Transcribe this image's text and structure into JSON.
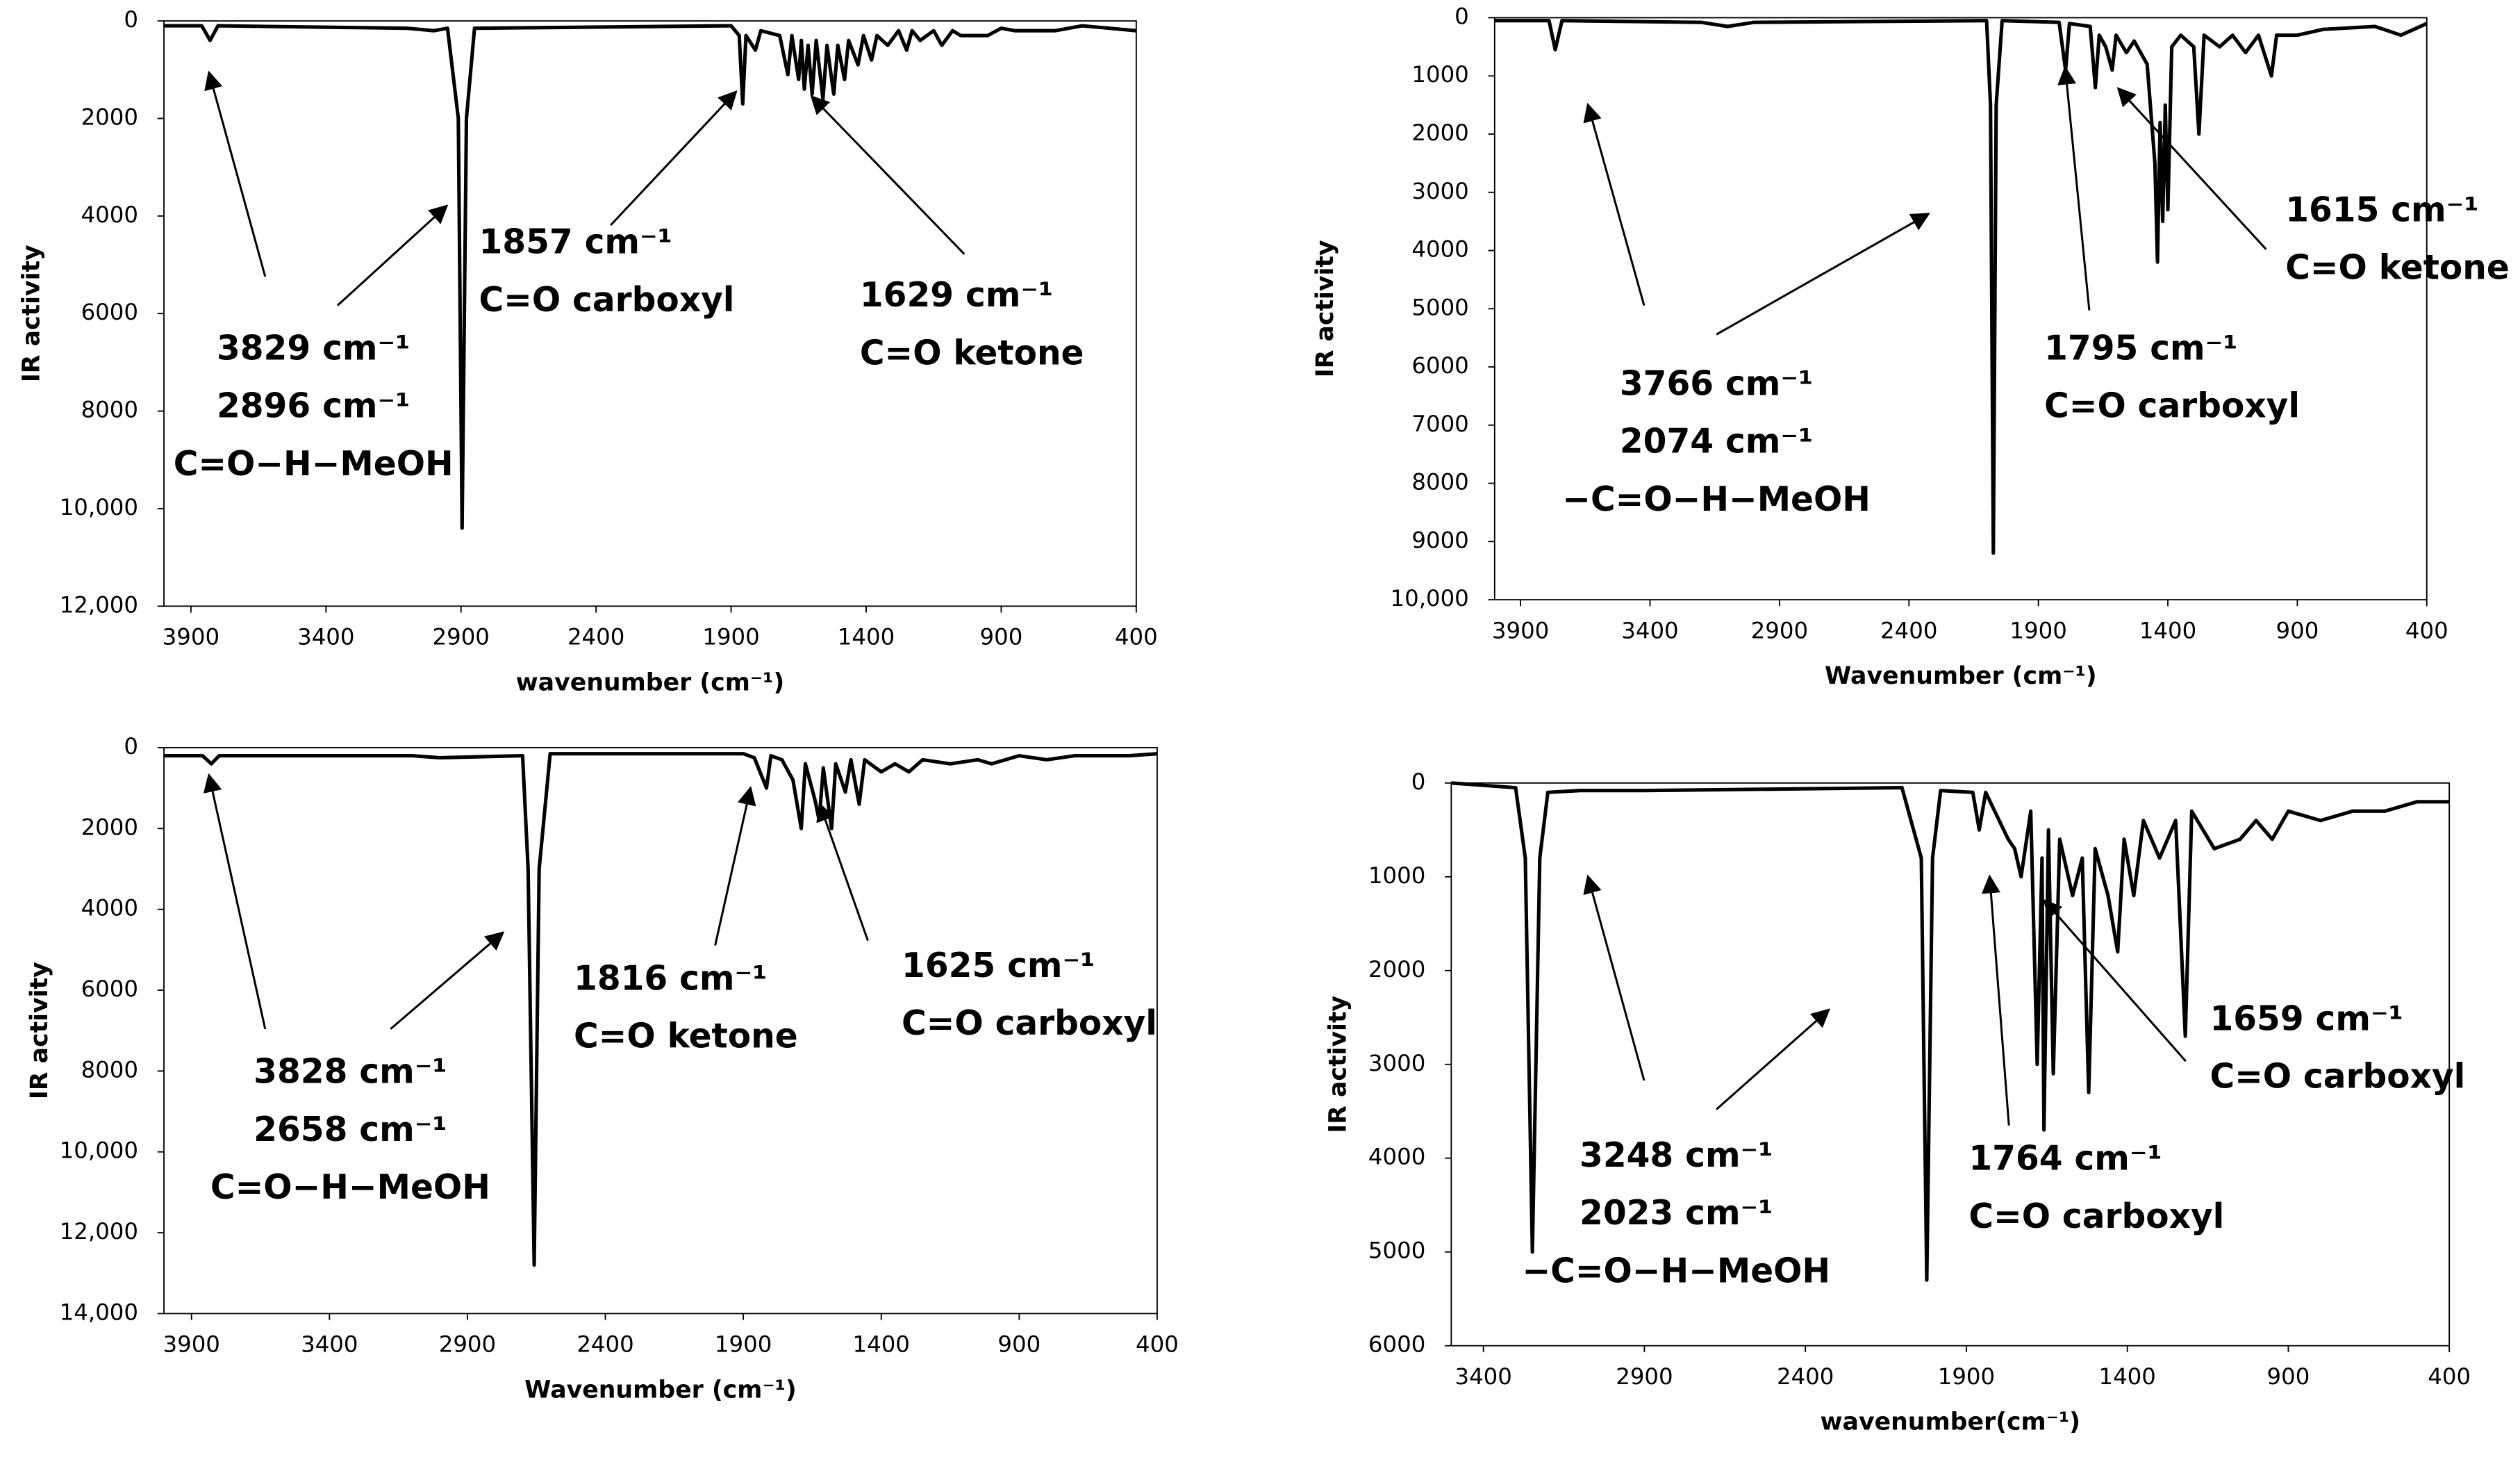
{
  "chart_data": [
    {
      "type": "line",
      "color": "#000000",
      "y_inverted": true,
      "xlabel": "wavenumber (cm⁻¹)",
      "ylabel": "IR activity",
      "xlim": [
        4000,
        400
      ],
      "xticks": [
        3900,
        3400,
        2900,
        2400,
        1900,
        1400,
        900,
        400
      ],
      "ylim": [
        0,
        12000
      ],
      "yticks": [
        0,
        2000,
        4000,
        6000,
        8000,
        {
          "value": 10000,
          "label": "10,000"
        },
        {
          "value": 12000,
          "label": "12,000"
        }
      ],
      "x": [
        4000,
        3860,
        3829,
        3800,
        3100,
        3000,
        2950,
        2910,
        2896,
        2880,
        2850,
        1900,
        1870,
        1857,
        1845,
        1810,
        1790,
        1720,
        1690,
        1675,
        1650,
        1640,
        1629,
        1615,
        1600,
        1585,
        1560,
        1545,
        1520,
        1505,
        1480,
        1465,
        1430,
        1410,
        1380,
        1360,
        1320,
        1280,
        1250,
        1230,
        1200,
        1150,
        1120,
        1080,
        1050,
        950,
        900,
        850,
        700,
        600,
        500,
        400
      ],
      "values": [
        100,
        100,
        400,
        100,
        150,
        200,
        150,
        2000,
        10400,
        2000,
        150,
        100,
        300,
        1700,
        300,
        600,
        200,
        300,
        1100,
        300,
        1200,
        400,
        1400,
        500,
        1500,
        400,
        1600,
        500,
        1500,
        500,
        1200,
        400,
        900,
        300,
        800,
        300,
        500,
        200,
        600,
        200,
        400,
        200,
        500,
        200,
        300,
        300,
        150,
        200,
        200,
        100,
        150,
        200
      ],
      "annotations": [
        {
          "lines": [
            "3829 cm⁻¹",
            "2896 cm⁻¹",
            "C=O−H−MeOH"
          ]
        },
        {
          "lines": [
            "1857 cm⁻¹",
            "C=O carboxyl"
          ]
        },
        {
          "lines": [
            "1629 cm⁻¹",
            "C=O ketone"
          ]
        }
      ]
    },
    {
      "type": "line",
      "color": "#000000",
      "y_inverted": true,
      "xlabel": "Wavenumber (cm⁻¹)",
      "ylabel": "IR activity",
      "xlim": [
        4000,
        400
      ],
      "xticks": [
        3900,
        3400,
        2900,
        2400,
        1900,
        1400,
        900,
        400
      ],
      "ylim": [
        0,
        10000
      ],
      "yticks": [
        0,
        1000,
        2000,
        3000,
        4000,
        5000,
        6000,
        7000,
        8000,
        9000,
        {
          "value": 10000,
          "label": "10,000"
        }
      ],
      "x": [
        4000,
        3790,
        3766,
        3740,
        3200,
        3100,
        3000,
        2100,
        2085,
        2074,
        2063,
        2040,
        1820,
        1795,
        1780,
        1700,
        1680,
        1665,
        1640,
        1615,
        1600,
        1560,
        1530,
        1480,
        1450,
        1440,
        1430,
        1420,
        1410,
        1400,
        1385,
        1350,
        1300,
        1280,
        1260,
        1200,
        1150,
        1100,
        1050,
        1000,
        980,
        900,
        800,
        600,
        500,
        400
      ],
      "values": [
        50,
        50,
        550,
        50,
        80,
        150,
        80,
        50,
        1500,
        9200,
        1500,
        50,
        80,
        900,
        100,
        150,
        1200,
        300,
        500,
        900,
        300,
        600,
        400,
        800,
        2500,
        4200,
        1800,
        3500,
        1500,
        3300,
        500,
        300,
        500,
        2000,
        300,
        500,
        300,
        600,
        300,
        1000,
        300,
        300,
        200,
        150,
        300,
        100
      ],
      "annotations": [
        {
          "lines": [
            "3766 cm⁻¹",
            "2074 cm⁻¹",
            "−C=O−H−MeOH"
          ]
        },
        {
          "lines": [
            "1795 cm⁻¹",
            "C=O carboxyl"
          ]
        },
        {
          "lines": [
            "1615 cm⁻¹",
            "C=O ketone"
          ]
        }
      ]
    },
    {
      "type": "line",
      "color": "#000000",
      "y_inverted": true,
      "xlabel": "Wavenumber (cm⁻¹)",
      "ylabel": "IR activity",
      "xlim": [
        4000,
        400
      ],
      "xticks": [
        3900,
        3400,
        2900,
        2400,
        1900,
        1400,
        900,
        400
      ],
      "ylim": [
        0,
        14000
      ],
      "yticks": [
        0,
        2000,
        4000,
        6000,
        8000,
        {
          "value": 10000,
          "label": "10,000"
        },
        {
          "value": 12000,
          "label": "12,000"
        },
        {
          "value": 14000,
          "label": "14,000"
        }
      ],
      "x": [
        4000,
        3860,
        3828,
        3800,
        3100,
        3000,
        2700,
        2680,
        2658,
        2640,
        2600,
        1900,
        1860,
        1816,
        1800,
        1760,
        1720,
        1690,
        1675,
        1640,
        1625,
        1610,
        1580,
        1565,
        1530,
        1510,
        1480,
        1460,
        1400,
        1350,
        1300,
        1250,
        1150,
        1050,
        1000,
        900,
        800,
        700,
        500,
        400
      ],
      "values": [
        200,
        200,
        400,
        200,
        200,
        250,
        200,
        3000,
        12800,
        3000,
        150,
        150,
        250,
        1000,
        200,
        300,
        800,
        2000,
        400,
        1300,
        1800,
        500,
        2000,
        400,
        1100,
        300,
        1400,
        300,
        600,
        400,
        600,
        300,
        400,
        300,
        400,
        200,
        300,
        200,
        200,
        150
      ],
      "annotations": [
        {
          "lines": [
            "3828 cm⁻¹",
            "2658 cm⁻¹",
            "C=O−H−MeOH"
          ]
        },
        {
          "lines": [
            "1816 cm⁻¹",
            "C=O ketone"
          ]
        },
        {
          "lines": [
            "1625 cm⁻¹",
            "C=O carboxyl"
          ]
        }
      ]
    },
    {
      "type": "line",
      "color": "#000000",
      "y_inverted": true,
      "xlabel": "wavenumber(cm⁻¹)",
      "ylabel": "IR activity",
      "xlim": [
        3500,
        400
      ],
      "xticks": [
        3400,
        2900,
        2400,
        1900,
        1400,
        900,
        400
      ],
      "ylim": [
        0,
        6000
      ],
      "yticks": [
        0,
        1000,
        2000,
        3000,
        4000,
        5000,
        6000
      ],
      "x": [
        3500,
        3300,
        3270,
        3248,
        3225,
        3200,
        3100,
        2900,
        2100,
        2040,
        2023,
        2005,
        1980,
        1880,
        1860,
        1840,
        1770,
        1750,
        1730,
        1700,
        1680,
        1665,
        1659,
        1645,
        1630,
        1610,
        1570,
        1540,
        1520,
        1500,
        1460,
        1430,
        1410,
        1380,
        1350,
        1300,
        1250,
        1220,
        1200,
        1130,
        1050,
        1000,
        950,
        900,
        800,
        700,
        600,
        500,
        400
      ],
      "values": [
        0,
        50,
        800,
        5000,
        800,
        100,
        80,
        80,
        50,
        800,
        5300,
        800,
        80,
        100,
        500,
        100,
        600,
        700,
        1000,
        300,
        3000,
        800,
        3700,
        500,
        3100,
        600,
        1200,
        800,
        3300,
        700,
        1200,
        1800,
        600,
        1200,
        400,
        800,
        400,
        2700,
        300,
        700,
        600,
        400,
        600,
        300,
        400,
        300,
        300,
        200,
        200
      ],
      "annotations": [
        {
          "lines": [
            "3248 cm⁻¹",
            "2023 cm⁻¹",
            "−C=O−H−MeOH"
          ]
        },
        {
          "lines": [
            "1764 cm⁻¹",
            "C=O carboxyl"
          ]
        },
        {
          "lines": [
            "1659 cm⁻¹",
            "C=O carboxyl"
          ]
        }
      ]
    }
  ]
}
